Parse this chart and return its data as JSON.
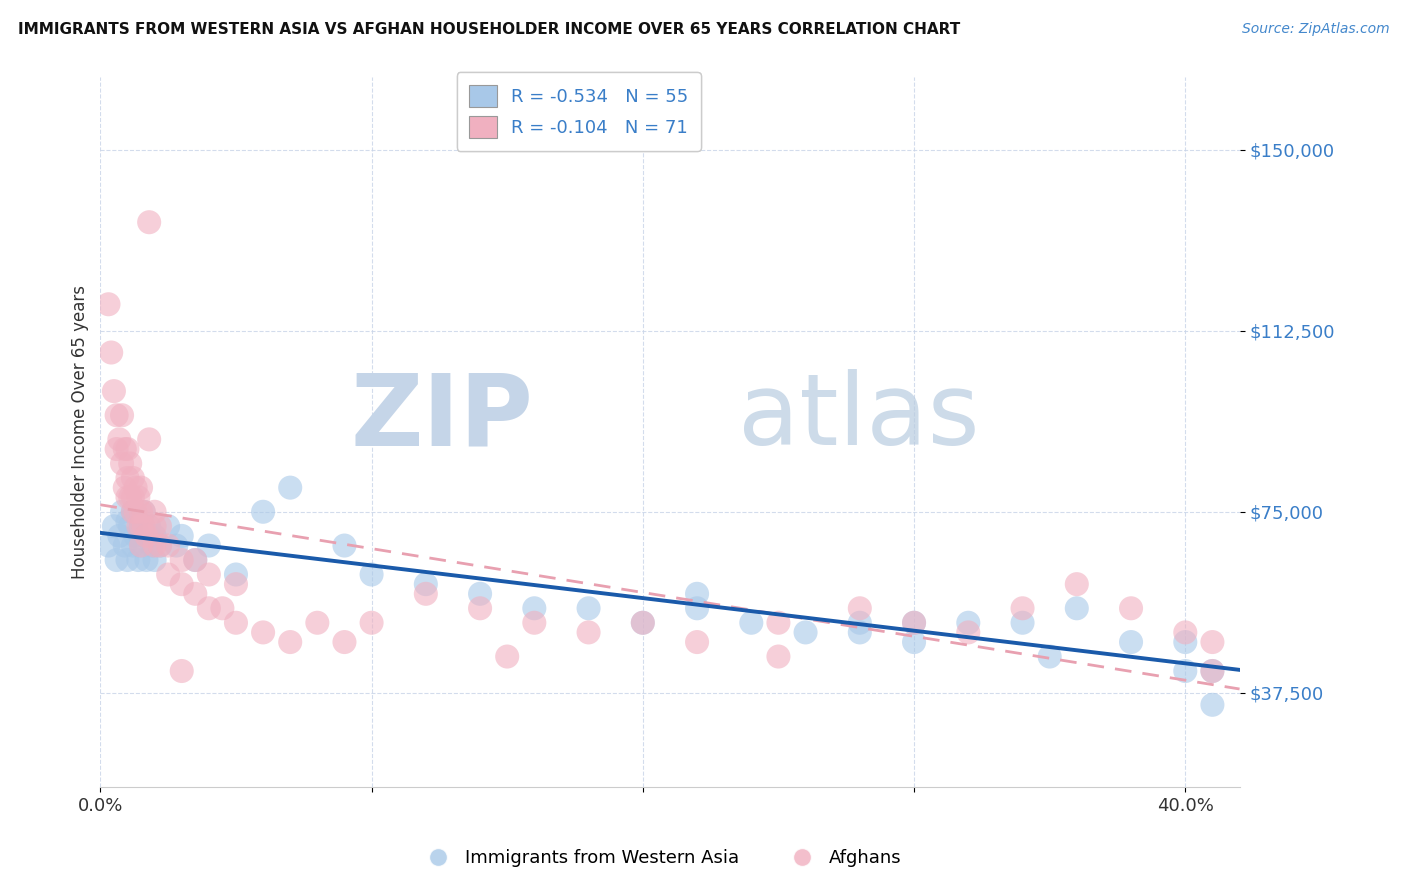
{
  "title": "IMMIGRANTS FROM WESTERN ASIA VS AFGHAN HOUSEHOLDER INCOME OVER 65 YEARS CORRELATION CHART",
  "source": "Source: ZipAtlas.com",
  "ylabel": "Householder Income Over 65 years",
  "y_ticks": [
    37500,
    75000,
    112500,
    150000
  ],
  "y_tick_labels": [
    "$37,500",
    "$75,000",
    "$112,500",
    "$150,000"
  ],
  "xlim": [
    0.0,
    0.42
  ],
  "ylim": [
    18000,
    165000
  ],
  "blue_color": "#a8c8e8",
  "pink_color": "#f0b0c0",
  "blue_line_color": "#1a5aaa",
  "pink_line_color": "#e07080",
  "pink_dash_color": "#e8a0b0",
  "watermark_zip_color": "#c5d5e8",
  "watermark_atlas_color": "#b8cce0",
  "blue_r": -0.534,
  "blue_n": 55,
  "pink_r": -0.104,
  "pink_n": 71,
  "legend_label_color": "#3a7ec8",
  "blue_scatter_x": [
    0.003,
    0.005,
    0.006,
    0.007,
    0.008,
    0.009,
    0.01,
    0.01,
    0.011,
    0.012,
    0.012,
    0.013,
    0.014,
    0.015,
    0.015,
    0.016,
    0.017,
    0.018,
    0.018,
    0.019,
    0.02,
    0.02,
    0.022,
    0.025,
    0.028,
    0.03,
    0.035,
    0.04,
    0.05,
    0.06,
    0.07,
    0.09,
    0.1,
    0.12,
    0.14,
    0.16,
    0.18,
    0.2,
    0.22,
    0.24,
    0.26,
    0.28,
    0.3,
    0.32,
    0.34,
    0.36,
    0.38,
    0.4,
    0.4,
    0.41,
    0.41,
    0.3,
    0.35,
    0.28,
    0.22
  ],
  "blue_scatter_y": [
    68000,
    72000,
    65000,
    70000,
    75000,
    68000,
    73000,
    65000,
    72000,
    68000,
    75000,
    70000,
    65000,
    72000,
    68000,
    75000,
    65000,
    70000,
    72000,
    68000,
    70000,
    65000,
    68000,
    72000,
    68000,
    70000,
    65000,
    68000,
    62000,
    75000,
    80000,
    68000,
    62000,
    60000,
    58000,
    55000,
    55000,
    52000,
    55000,
    52000,
    50000,
    52000,
    48000,
    52000,
    52000,
    55000,
    48000,
    42000,
    48000,
    35000,
    42000,
    52000,
    45000,
    50000,
    58000
  ],
  "pink_scatter_x": [
    0.003,
    0.004,
    0.005,
    0.006,
    0.006,
    0.007,
    0.008,
    0.008,
    0.009,
    0.009,
    0.01,
    0.01,
    0.01,
    0.011,
    0.011,
    0.012,
    0.012,
    0.012,
    0.013,
    0.013,
    0.014,
    0.014,
    0.015,
    0.015,
    0.015,
    0.015,
    0.016,
    0.016,
    0.017,
    0.018,
    0.018,
    0.02,
    0.02,
    0.02,
    0.022,
    0.022,
    0.025,
    0.025,
    0.03,
    0.03,
    0.035,
    0.035,
    0.04,
    0.04,
    0.045,
    0.05,
    0.05,
    0.06,
    0.07,
    0.08,
    0.09,
    0.1,
    0.12,
    0.14,
    0.16,
    0.18,
    0.2,
    0.22,
    0.25,
    0.28,
    0.3,
    0.32,
    0.34,
    0.36,
    0.38,
    0.4,
    0.41,
    0.41,
    0.03,
    0.15,
    0.25
  ],
  "pink_scatter_y": [
    118000,
    108000,
    100000,
    95000,
    88000,
    90000,
    95000,
    85000,
    88000,
    80000,
    88000,
    82000,
    78000,
    85000,
    78000,
    82000,
    78000,
    75000,
    80000,
    75000,
    78000,
    72000,
    80000,
    75000,
    72000,
    68000,
    75000,
    72000,
    70000,
    135000,
    90000,
    75000,
    72000,
    68000,
    72000,
    68000,
    68000,
    62000,
    65000,
    60000,
    65000,
    58000,
    62000,
    55000,
    55000,
    60000,
    52000,
    50000,
    48000,
    52000,
    48000,
    52000,
    58000,
    55000,
    52000,
    50000,
    52000,
    48000,
    52000,
    55000,
    52000,
    50000,
    55000,
    60000,
    55000,
    50000,
    42000,
    48000,
    42000,
    45000,
    45000
  ]
}
